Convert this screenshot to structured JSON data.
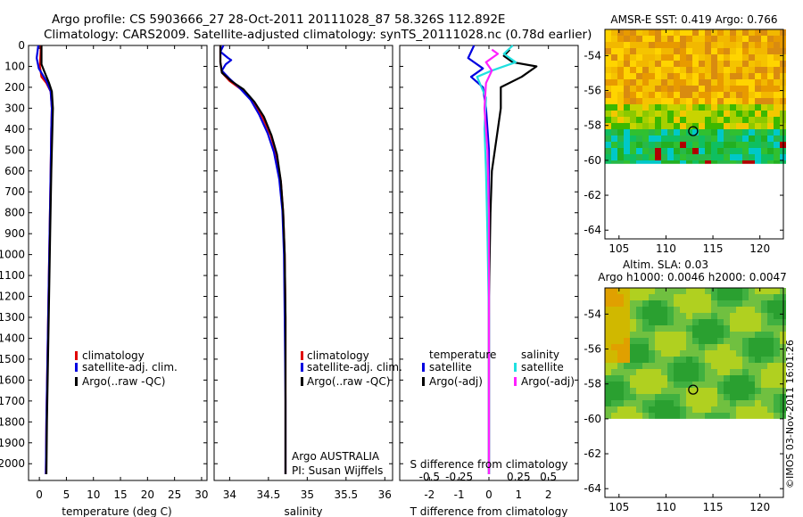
{
  "header": {
    "line1": "Argo profile: CS 5903666_27 28-Oct-2011 20111028_87 58.326S 112.892E",
    "line2": "Climatology: CARS2009. Satellite-adjusted climatology: synTS_20111028.nc (0.78d earlier)"
  },
  "credit": "©IMOS 03-Nov-2011 16:01:26",
  "colors": {
    "climatology": "#e00000",
    "satellite": "#0000e0",
    "argo": "#000000",
    "sal_satellite": "#20e0e0",
    "sal_argo": "#ff20ff"
  },
  "chart_data": [
    {
      "id": "temperature",
      "type": "line",
      "xlabel": "temperature (deg C)",
      "xlim": [
        -2,
        31
      ],
      "xticks": [
        0,
        5,
        10,
        15,
        20,
        25,
        30
      ],
      "ylim": [
        0,
        2080
      ],
      "yticks": [
        0,
        100,
        200,
        300,
        400,
        500,
        600,
        700,
        800,
        900,
        1000,
        1100,
        1200,
        1300,
        1400,
        1500,
        1600,
        1700,
        1800,
        1900,
        2000
      ],
      "legend": [
        "climatology",
        "satellite-adj. clim.",
        "Argo(..raw -QC)"
      ],
      "series": [
        {
          "name": "climatology",
          "color": "#e00000",
          "points": [
            [
              0.3,
              0
            ],
            [
              0.2,
              50
            ],
            [
              0.1,
              100
            ],
            [
              0.4,
              150
            ],
            [
              1.3,
              180
            ],
            [
              2.1,
              220
            ],
            [
              2.3,
              300
            ],
            [
              2.2,
              400
            ],
            [
              2.1,
              600
            ],
            [
              1.9,
              900
            ],
            [
              1.7,
              1200
            ],
            [
              1.5,
              1500
            ],
            [
              1.3,
              1800
            ],
            [
              1.2,
              2050
            ]
          ]
        },
        {
          "name": "satellite-adj. clim.",
          "color": "#0000e0",
          "points": [
            [
              -0.2,
              0
            ],
            [
              -0.5,
              60
            ],
            [
              -0.1,
              110
            ],
            [
              1.3,
              170
            ],
            [
              2.1,
              220
            ],
            [
              2.3,
              300
            ],
            [
              2.2,
              400
            ],
            [
              2.1,
              600
            ],
            [
              1.9,
              900
            ],
            [
              1.7,
              1200
            ],
            [
              1.5,
              1500
            ],
            [
              1.3,
              1800
            ],
            [
              1.2,
              2050
            ]
          ]
        },
        {
          "name": "Argo(..raw -QC)",
          "color": "#000000",
          "points": [
            [
              0.4,
              0
            ],
            [
              0.4,
              90
            ],
            [
              1.0,
              130
            ],
            [
              1.8,
              180
            ],
            [
              2.3,
              220
            ],
            [
              2.5,
              300
            ],
            [
              2.4,
              400
            ],
            [
              2.2,
              600
            ],
            [
              2.0,
              900
            ],
            [
              1.8,
              1200
            ],
            [
              1.6,
              1500
            ],
            [
              1.4,
              1800
            ],
            [
              1.3,
              2050
            ]
          ]
        }
      ]
    },
    {
      "id": "salinity",
      "type": "line",
      "xlabel": "salinity",
      "xlim": [
        33.8,
        36.1
      ],
      "xticks": [
        34,
        34.5,
        35,
        35.5,
        36
      ],
      "xticklabels": [
        "34",
        "34.5",
        "35",
        "35.5",
        "36"
      ],
      "ylim": [
        0,
        2080
      ],
      "legend": [
        "climatology",
        "satellite-adj. clim.",
        "Argo(..raw -QC)"
      ],
      "float_info": [
        "Argo AUSTRALIA",
        "PI: Susan Wijffels"
      ],
      "series": [
        {
          "name": "climatology",
          "color": "#e00000",
          "points": [
            [
              33.88,
              0
            ],
            [
              33.88,
              80
            ],
            [
              33.9,
              130
            ],
            [
              34.0,
              170
            ],
            [
              34.15,
              210
            ],
            [
              34.3,
              270
            ],
            [
              34.42,
              340
            ],
            [
              34.53,
              430
            ],
            [
              34.6,
              520
            ],
            [
              34.66,
              650
            ],
            [
              34.69,
              800
            ],
            [
              34.71,
              1000
            ],
            [
              34.72,
              1300
            ],
            [
              34.72,
              1700
            ],
            [
              34.72,
              2050
            ]
          ]
        },
        {
          "name": "satellite-adj. clim.",
          "color": "#0000e0",
          "points": [
            [
              33.92,
              0
            ],
            [
              33.88,
              30
            ],
            [
              33.98,
              60
            ],
            [
              34.02,
              70
            ],
            [
              33.95,
              90
            ],
            [
              33.9,
              120
            ],
            [
              34.0,
              160
            ],
            [
              34.12,
              200
            ],
            [
              34.27,
              260
            ],
            [
              34.38,
              330
            ],
            [
              34.49,
              420
            ],
            [
              34.57,
              510
            ],
            [
              34.64,
              640
            ],
            [
              34.68,
              790
            ],
            [
              34.7,
              1000
            ],
            [
              34.71,
              1300
            ],
            [
              34.72,
              1700
            ],
            [
              34.72,
              2050
            ]
          ]
        },
        {
          "name": "Argo(..raw -QC)",
          "color": "#000000",
          "points": [
            [
              33.88,
              0
            ],
            [
              33.88,
              80
            ],
            [
              33.9,
              130
            ],
            [
              34.02,
              170
            ],
            [
              34.18,
              210
            ],
            [
              34.32,
              270
            ],
            [
              34.44,
              340
            ],
            [
              34.54,
              430
            ],
            [
              34.61,
              520
            ],
            [
              34.66,
              650
            ],
            [
              34.69,
              800
            ],
            [
              34.71,
              1000
            ],
            [
              34.72,
              1300
            ],
            [
              34.72,
              1700
            ],
            [
              34.72,
              2050
            ]
          ]
        }
      ]
    },
    {
      "id": "difference",
      "type": "line",
      "xlabel": "T difference from climatology",
      "xlabel_top": "S difference from climatology",
      "xlim": [
        -3,
        3
      ],
      "xticks": [
        -2,
        -1,
        0,
        1,
        2
      ],
      "xticklabels": [
        "-2",
        "-1",
        "0",
        "1",
        "2"
      ],
      "top_ticks": [
        -2,
        -1,
        1,
        2
      ],
      "top_ticklabels": [
        "-0.5",
        "-0.25",
        "0.25",
        "0.5"
      ],
      "ylim": [
        0,
        2080
      ],
      "legend_temperature": {
        "title": "temperature",
        "items": [
          "satellite",
          "Argo(-adj)"
        ]
      },
      "legend_salinity": {
        "title": "salinity",
        "items": [
          "satellite",
          "Argo(-adj)"
        ]
      },
      "series": [
        {
          "name": "temperature satellite",
          "color": "#0000e0",
          "points": [
            [
              -0.5,
              0
            ],
            [
              -0.7,
              60
            ],
            [
              -0.2,
              110
            ],
            [
              -0.6,
              150
            ],
            [
              -0.2,
              200
            ],
            [
              -0.1,
              300
            ],
            [
              0,
              500
            ],
            [
              0,
              800
            ],
            [
              0,
              1200
            ],
            [
              0,
              1600
            ],
            [
              0,
              2050
            ]
          ]
        },
        {
          "name": "temperature Argo(-adj)",
          "color": "#000000",
          "points": [
            [
              0.7,
              20
            ],
            [
              0.5,
              50
            ],
            [
              0.8,
              80
            ],
            [
              1.6,
              100
            ],
            [
              1.1,
              150
            ],
            [
              0.4,
              200
            ],
            [
              0.4,
              300
            ],
            [
              0.3,
              400
            ],
            [
              0.1,
              600
            ],
            [
              0.05,
              800
            ],
            [
              0,
              1200
            ],
            [
              0,
              2050
            ]
          ]
        },
        {
          "name": "salinity satellite",
          "color": "#20e0e0",
          "points": [
            [
              0.8,
              0
            ],
            [
              0.5,
              40
            ],
            [
              0.9,
              80
            ],
            [
              0.1,
              120
            ],
            [
              -0.4,
              150
            ],
            [
              -0.1,
              250
            ],
            [
              -0.15,
              400
            ],
            [
              -0.1,
              600
            ],
            [
              -0.05,
              900
            ],
            [
              0,
              1300
            ],
            [
              0,
              2050
            ]
          ]
        },
        {
          "name": "salinity Argo(-adj)",
          "color": "#ff20ff",
          "points": [
            [
              0.1,
              20
            ],
            [
              0.3,
              40
            ],
            [
              -0.1,
              80
            ],
            [
              0.1,
              120
            ],
            [
              -0.1,
              180
            ],
            [
              -0.15,
              300
            ],
            [
              -0.05,
              500
            ],
            [
              0,
              800
            ],
            [
              0,
              1300
            ],
            [
              0,
              2050
            ]
          ]
        }
      ]
    },
    {
      "id": "sst_map",
      "type": "heatmap",
      "title": "AMSR-E SST: 0.419 Argo: 0.766",
      "xlim": [
        103.5,
        122.5
      ],
      "xticks": [
        105,
        110,
        115,
        120
      ],
      "ylim": [
        -64.5,
        -52.5
      ],
      "yticks": [
        -54,
        -56,
        -58,
        -60,
        -62,
        -64
      ],
      "marker": [
        112.892,
        -58.326
      ],
      "data_extent_south": -60.2
    },
    {
      "id": "sla_map",
      "type": "heatmap",
      "title": "Altim. SLA: 0.03",
      "subtitle": "Argo h1000: 0.0046 h2000: 0.0047",
      "xlim": [
        103.5,
        122.5
      ],
      "xticks": [
        105,
        110,
        115,
        120
      ],
      "ylim": [
        -64.5,
        -52.5
      ],
      "yticks": [
        -54,
        -56,
        -58,
        -60,
        -62,
        -64
      ],
      "marker": [
        112.892,
        -58.326
      ],
      "data_extent_south": -60.0
    }
  ]
}
